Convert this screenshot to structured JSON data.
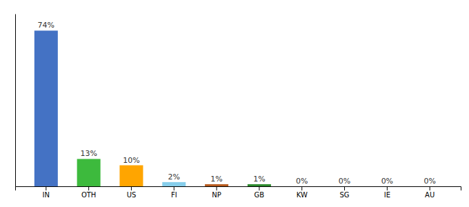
{
  "chart_data": {
    "type": "bar",
    "categories": [
      "IN",
      "OTH",
      "US",
      "FI",
      "NP",
      "GB",
      "KW",
      "SG",
      "IE",
      "AU"
    ],
    "values": [
      74,
      13,
      10,
      2,
      1,
      1,
      0,
      0,
      0,
      0
    ],
    "value_labels": [
      "74%",
      "13%",
      "10%",
      "2%",
      "1%",
      "1%",
      "0%",
      "0%",
      "0%",
      "0%"
    ],
    "colors": [
      "#4472c4",
      "#3dba3d",
      "#ffa500",
      "#87ceeb",
      "#b85c20",
      "#2e8b2e",
      "#4472c4",
      "#4472c4",
      "#4472c4",
      "#4472c4"
    ],
    "ylim": [
      0,
      82
    ],
    "data_labels": true,
    "tick_labels": "x",
    "grid": false
  }
}
